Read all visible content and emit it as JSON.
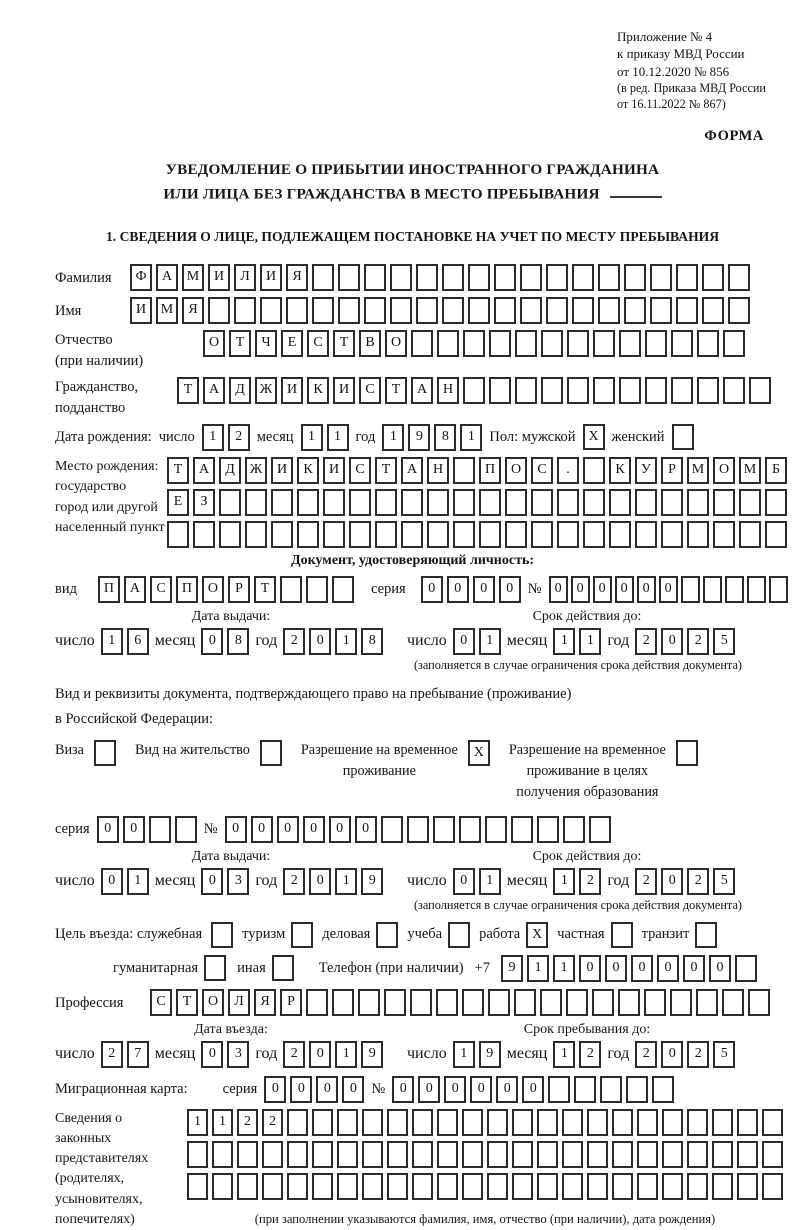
{
  "meta": {
    "appendix_lines": [
      "Приложение № 4",
      "к приказу МВД России",
      "от 10.12.2020 № 856"
    ],
    "edition_lines": [
      "(в ред. Приказа МВД России",
      "от 16.11.2022 № 867)"
    ],
    "form_label": "ФОРМА"
  },
  "title": {
    "line1": "УВЕДОМЛЕНИЕ О ПРИБЫТИИ ИНОСТРАННОГО ГРАЖДАНИНА",
    "line2": "ИЛИ ЛИЦА БЕЗ ГРАЖДАНСТВА В МЕСТО ПРЕБЫВАНИЯ"
  },
  "section1_heading": "1. СВЕДЕНИЯ О ЛИЦЕ, ПОДЛЕЖАЩЕМ ПОСТАНОВКЕ НА УЧЕТ ПО МЕСТУ ПРЕБЫВАНИЯ",
  "labels": {
    "day": "число",
    "month": "месяц",
    "year": "год",
    "series": "серия",
    "number": "№",
    "issue_date": "Дата выдачи:",
    "valid_until": "Срок действия до:",
    "valid_note": "(заполняется в случае ограничения срока действия документа)"
  },
  "person": {
    "surname": {
      "label": "Фамилия",
      "cells": {
        "chars": "ФАМИЛИЯ",
        "count": 24
      }
    },
    "firstname": {
      "label": "Имя",
      "cells": {
        "chars": "ИМЯ",
        "count": 24
      }
    },
    "patronymic": {
      "label1": "Отчество",
      "label2": "(при наличии)",
      "cells": {
        "chars": "ОТЧЕСТВО",
        "count": 21
      }
    },
    "citizenship": {
      "label1": "Гражданство,",
      "label2": "подданство",
      "cells": {
        "chars": "ТАДЖИКИСТАН",
        "count": 23
      }
    },
    "birth_date": {
      "label": "Дата рождения:",
      "day": {
        "chars": "12",
        "count": 2
      },
      "month": {
        "chars": "11",
        "count": 2
      },
      "year": {
        "chars": "1981",
        "count": 4
      }
    },
    "sex": {
      "label": "Пол: мужской",
      "male_mark": "X",
      "female": "женский",
      "female_mark": ""
    },
    "birth_place": {
      "labels": [
        "Место рождения:",
        "государство",
        "город или другой",
        "населенный пункт"
      ],
      "row1": {
        "chars": "ТАДЖИКИСТАН ПОС. КУРМОМБ",
        "count": 24
      },
      "row2": {
        "chars": "ЕЗ",
        "count": 24
      },
      "row3": {
        "chars": "",
        "count": 24
      }
    }
  },
  "identity_doc": {
    "heading": "Документ, удостоверяющий личность:",
    "kind_label": "вид",
    "kind": {
      "chars": "ПАСПОРТ",
      "count": 10
    },
    "series": {
      "chars": "0000",
      "count": 4
    },
    "number": {
      "chars": "000000",
      "count": 11
    },
    "issue": {
      "day": {
        "chars": "16",
        "count": 2
      },
      "month": {
        "chars": "08",
        "count": 2
      },
      "year": {
        "chars": "2018",
        "count": 4
      }
    },
    "valid": {
      "day": {
        "chars": "01",
        "count": 2
      },
      "month": {
        "chars": "11",
        "count": 2
      },
      "year": {
        "chars": "2025",
        "count": 4
      }
    }
  },
  "residence_doc": {
    "intro1": "Вид и реквизиты документа, подтверждающего право на пребывание (проживание)",
    "intro2": "в Российской Федерации:",
    "options": [
      {
        "lines": [
          "Виза"
        ],
        "mark": ""
      },
      {
        "lines": [
          "Вид на жительство"
        ],
        "mark": ""
      },
      {
        "lines": [
          "Разрешение на временное",
          "проживание"
        ],
        "mark": "X"
      },
      {
        "lines": [
          "Разрешение на временное",
          "проживание в целях",
          "получения образования"
        ],
        "mark": ""
      }
    ],
    "series": {
      "chars": "00",
      "count": 4
    },
    "number": {
      "chars": "000000",
      "count": 15
    },
    "issue": {
      "day": {
        "chars": "01",
        "count": 2
      },
      "month": {
        "chars": "03",
        "count": 2
      },
      "year": {
        "chars": "2019",
        "count": 4
      }
    },
    "valid": {
      "day": {
        "chars": "01",
        "count": 2
      },
      "month": {
        "chars": "12",
        "count": 2
      },
      "year": {
        "chars": "2025",
        "count": 4
      }
    }
  },
  "visit": {
    "purpose_label": "Цель въезда: служебная",
    "purposes": [
      {
        "label": "туризм",
        "mark": ""
      },
      {
        "label": "деловая",
        "mark": ""
      },
      {
        "label": "учеба",
        "mark": ""
      },
      {
        "label": "работа",
        "mark": "X"
      },
      {
        "label": "частная",
        "mark": ""
      },
      {
        "label": "транзит",
        "mark": ""
      }
    ],
    "first_purpose_mark": "",
    "purposes2": [
      {
        "label": "гуманитарная",
        "mark": ""
      },
      {
        "label": "иная",
        "mark": ""
      }
    ],
    "phone_label": "Телефон (при наличии)",
    "phone_prefix": "+7",
    "phone": {
      "chars": "911000000",
      "count": 10
    },
    "profession_label": "Профессия",
    "profession": {
      "chars": "СТОЛЯР",
      "count": 24
    },
    "entry_date_label": "Дата въезда:",
    "entry": {
      "day": {
        "chars": "27",
        "count": 2
      },
      "month": {
        "chars": "03",
        "count": 2
      },
      "year": {
        "chars": "2019",
        "count": 4
      }
    },
    "stay_label": "Срок пребывания до:",
    "stay": {
      "day": {
        "chars": "19",
        "count": 2
      },
      "month": {
        "chars": "12",
        "count": 2
      },
      "year": {
        "chars": "2025",
        "count": 4
      }
    }
  },
  "migration_card": {
    "label": "Миграционная карта:",
    "series": {
      "chars": "0000",
      "count": 4
    },
    "number": {
      "chars": "000000",
      "count": 11
    }
  },
  "legal_reps": {
    "labels": [
      "Сведения о",
      "законных",
      "представителях",
      "(родителях,",
      "усыновителях,",
      "попечителях)"
    ],
    "row1": {
      "chars": "1122",
      "count": 24
    },
    "row2": {
      "chars": "",
      "count": 24
    },
    "row3": {
      "chars": "",
      "count": 24
    },
    "note": "(при заполнении указываются фамилия, имя, отчество (при наличии), дата рождения)"
  }
}
